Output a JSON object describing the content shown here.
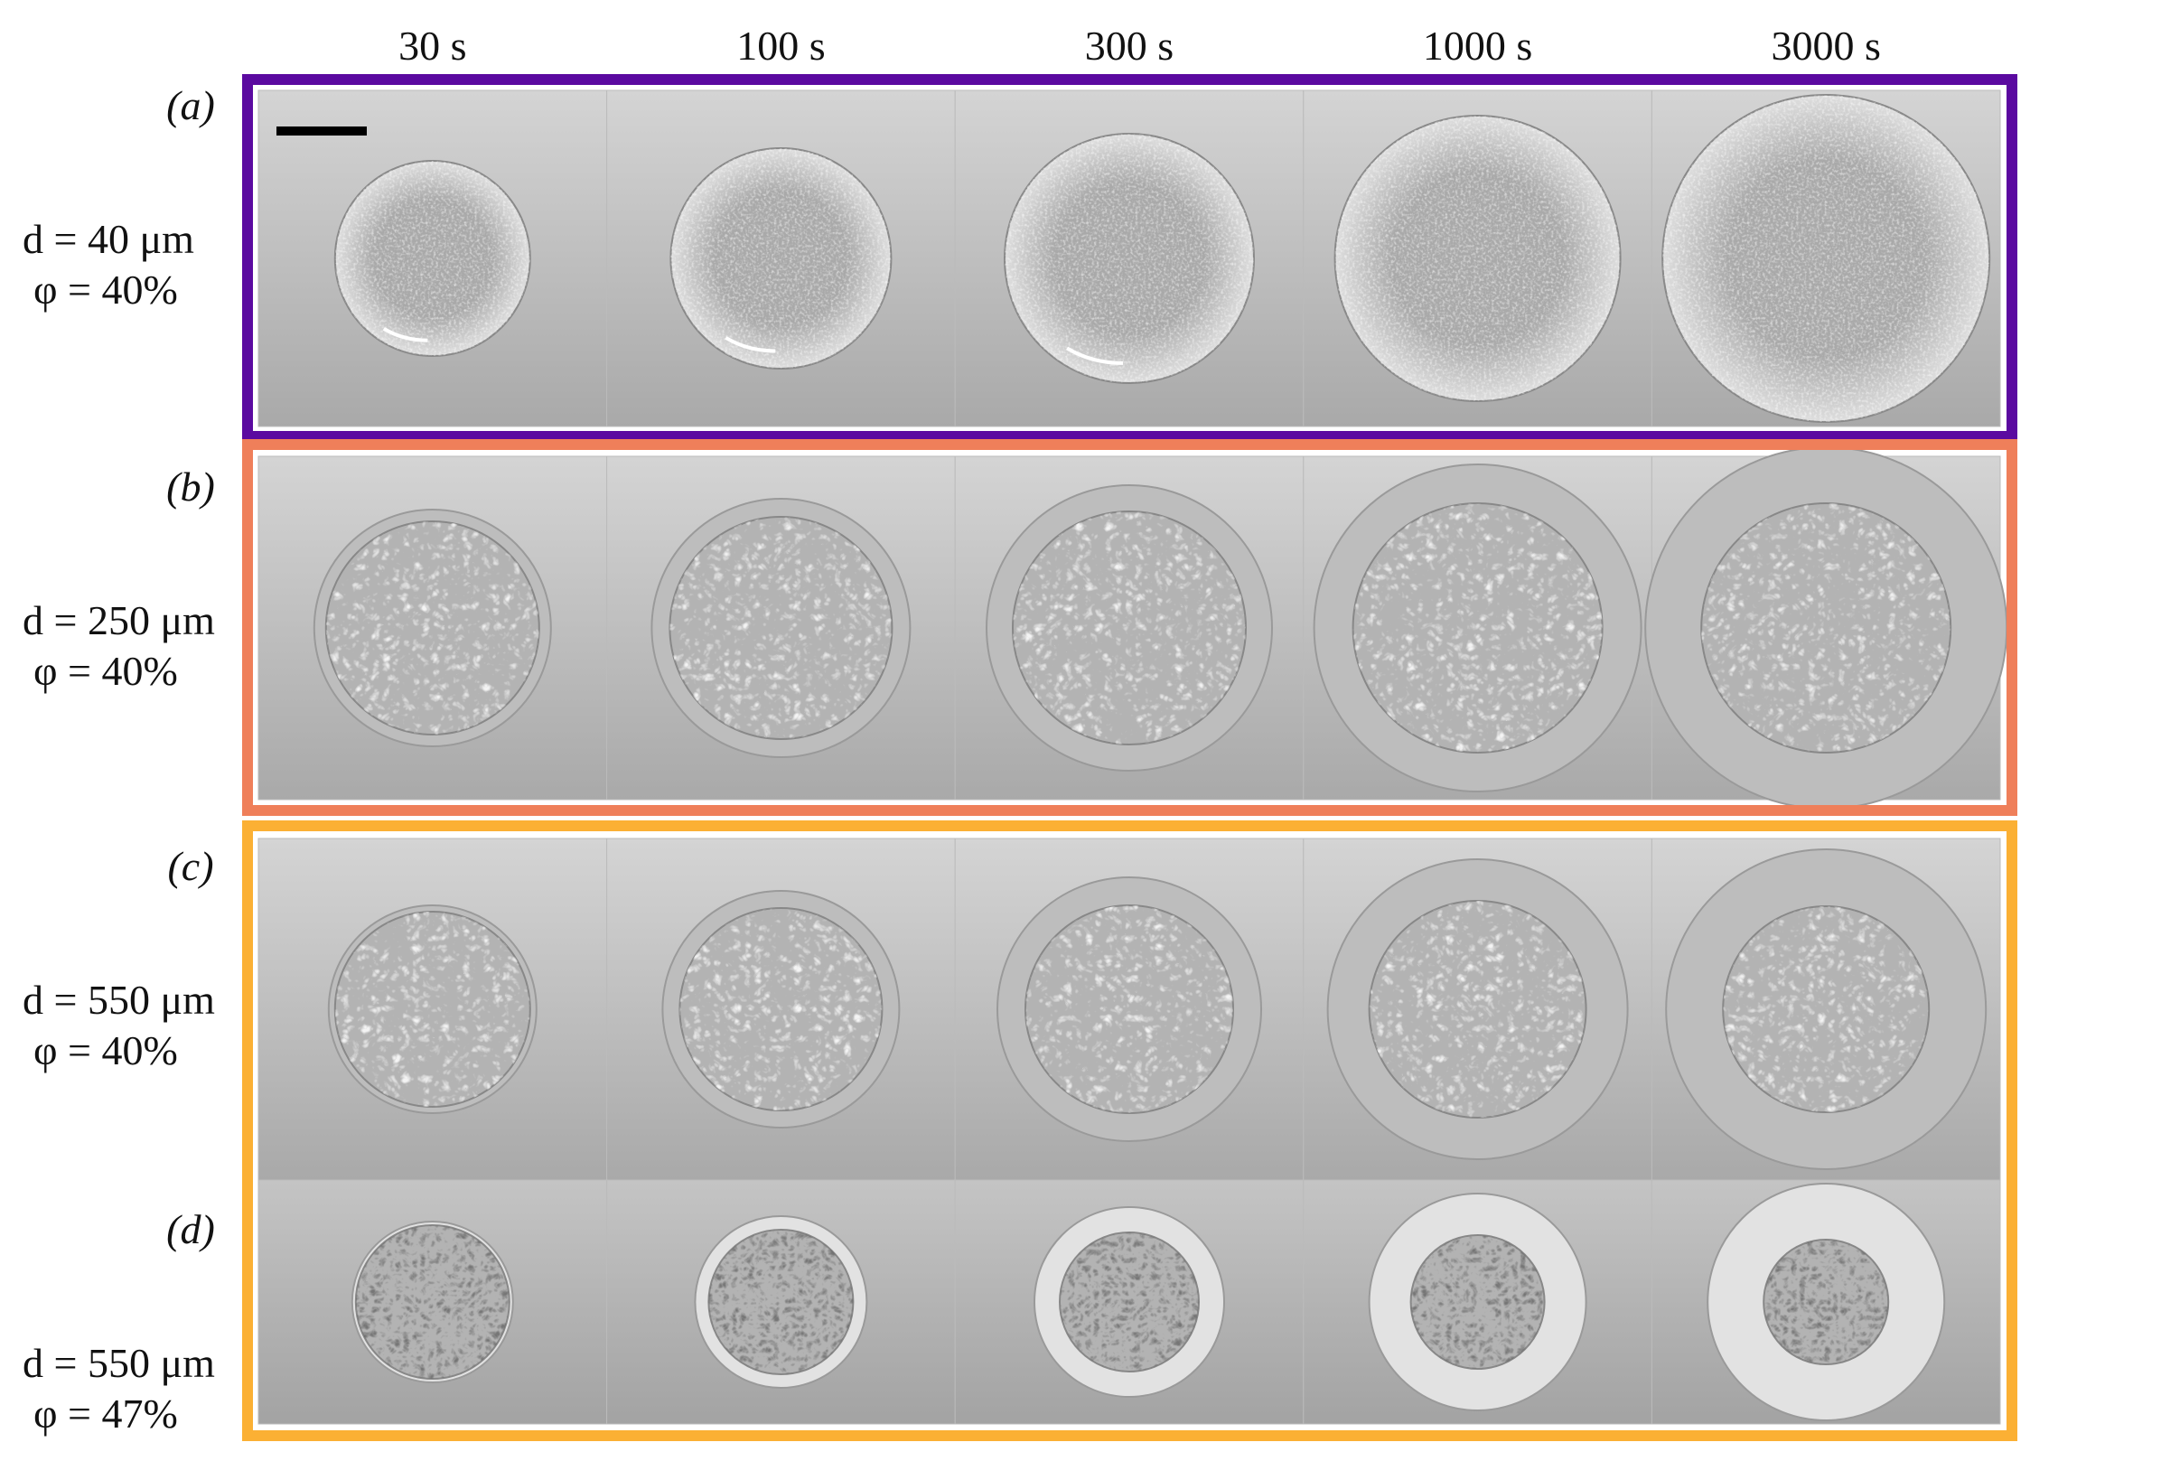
{
  "columns": [
    "30 s",
    "100 s",
    "300 s",
    "1000 s",
    "3000 s"
  ],
  "rows": [
    {
      "label": "(a)",
      "size": "d = 40 μm",
      "fraction": "φ = 40%"
    },
    {
      "label": "(b)",
      "size": "d = 250 μm",
      "fraction": "φ = 40%"
    },
    {
      "label": "(c)",
      "size": "d = 550 μm",
      "fraction": "φ = 40%"
    },
    {
      "label": "(d)",
      "size": "d = 550 μm",
      "fraction": "φ = 47%"
    }
  ]
}
